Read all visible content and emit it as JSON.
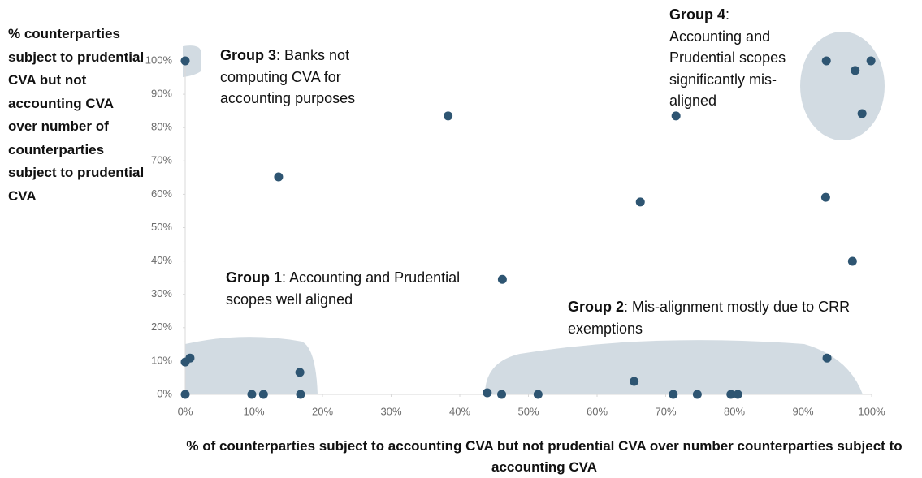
{
  "chart_data": {
    "type": "scatter",
    "x_label": "% of counterparties subject to accounting CVA but not prudential CVA over number counterparties subject to accounting CVA",
    "y_label": "% counterparties subject to prudential CVA but not accounting CVA over number of counterparties subject to prudential CVA",
    "annotations": [
      {
        "bold": "Group 3",
        "text": ": Banks not computing CVA for accounting purposes"
      },
      {
        "bold": "Group 1",
        "text": ": Accounting and Prudential scopes well aligned"
      },
      {
        "bold": "Group 2",
        "text": ": Mis-alignment mostly due to CRR exemptions"
      },
      {
        "bold": "Group 4",
        "text": ": Accounting and Prudential scopes significantly mis-aligned"
      }
    ],
    "color": "#2e5572",
    "x": [
      0,
      13.6,
      38.3,
      46.2,
      71.5,
      66.3,
      93.4,
      97.6,
      99.9,
      98.6,
      93.3,
      97.2,
      93.5,
      0,
      0.7,
      0,
      9.7,
      11.4,
      16.7,
      16.8,
      44.0,
      46.1,
      51.4,
      65.4,
      71.1,
      74.6,
      79.5,
      80.5
    ],
    "values": [
      100,
      65.2,
      83.5,
      34.5,
      83.5,
      57.7,
      100,
      97.1,
      100,
      84.2,
      59.1,
      39.9,
      10.9,
      9.7,
      10.9,
      0,
      0,
      0,
      6.6,
      0,
      0.5,
      0,
      0,
      3.9,
      0,
      0,
      0,
      0
    ],
    "xlim": [
      0,
      100
    ],
    "ylim": [
      0,
      100
    ],
    "xticks": [
      {
        "value": 0,
        "label": "0%"
      },
      {
        "value": 10,
        "label": "10%"
      },
      {
        "value": 20,
        "label": "20%"
      },
      {
        "value": 30,
        "label": "30%"
      },
      {
        "value": 40,
        "label": "40%"
      },
      {
        "value": 50,
        "label": "50%"
      },
      {
        "value": 60,
        "label": "60%"
      },
      {
        "value": 70,
        "label": "70%"
      },
      {
        "value": 80,
        "label": "80%"
      },
      {
        "value": 90,
        "label": "90%"
      },
      {
        "value": 100,
        "label": "100%"
      }
    ],
    "yticks": [
      {
        "value": 0,
        "label": "0%"
      },
      {
        "value": 10,
        "label": "10%"
      },
      {
        "value": 20,
        "label": "20%"
      },
      {
        "value": 30,
        "label": "30%"
      },
      {
        "value": 40,
        "label": "40%"
      },
      {
        "value": 50,
        "label": "50%"
      },
      {
        "value": 60,
        "label": "60%"
      },
      {
        "value": 70,
        "label": "70%"
      },
      {
        "value": 80,
        "label": "80%"
      },
      {
        "value": 90,
        "label": "90%"
      },
      {
        "value": 100,
        "label": "100%"
      }
    ]
  }
}
